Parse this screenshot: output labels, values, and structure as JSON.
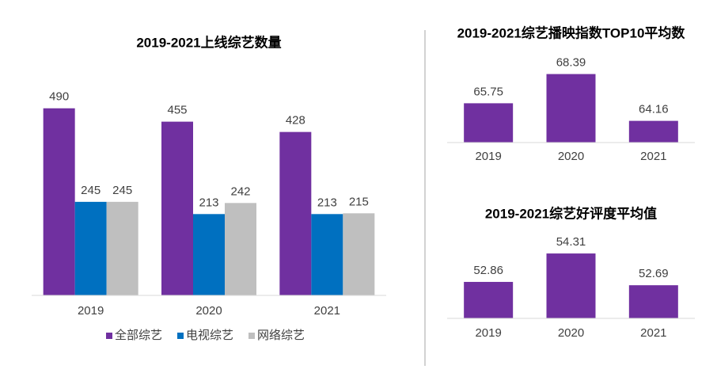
{
  "chart_data": [
    {
      "type": "bar",
      "title": "2019-2021上线综艺数量",
      "categories": [
        "2019",
        "2020",
        "2021"
      ],
      "series": [
        {
          "name": "全部综艺",
          "color": "#7030a0",
          "values": [
            490,
            455,
            428
          ]
        },
        {
          "name": "电视综艺",
          "color": "#0070c0",
          "values": [
            245,
            213,
            213
          ]
        },
        {
          "name": "网络综艺",
          "color": "#bfbfbf",
          "values": [
            245,
            242,
            215
          ]
        }
      ],
      "ylim": [
        0,
        560
      ],
      "legend": "bottom"
    },
    {
      "type": "bar",
      "title": "2019-2021综艺播映指数TOP10平均数",
      "categories": [
        "2019",
        "2020",
        "2021"
      ],
      "values": [
        65.75,
        68.39,
        64.16
      ],
      "color": "#7030a0",
      "ylim": [
        62.2,
        70
      ]
    },
    {
      "type": "bar",
      "title": "2019-2021综艺好评度平均值",
      "categories": [
        "2019",
        "2020",
        "2021"
      ],
      "values": [
        52.86,
        54.31,
        52.69
      ],
      "color": "#7030a0",
      "ylim": [
        51,
        55
      ]
    }
  ]
}
